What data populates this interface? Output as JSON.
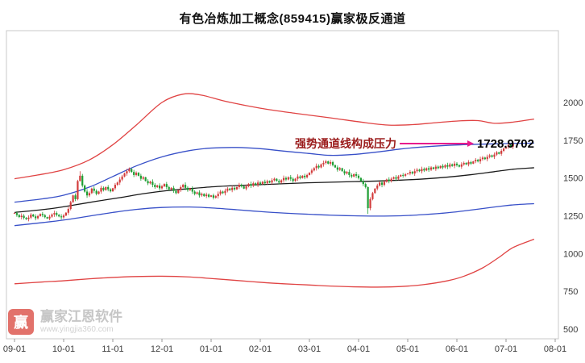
{
  "title": "有色冶炼加工概念(859415)赢家极反通道",
  "annotation": {
    "text": "强势通道线构成压力",
    "value": "1728.9702",
    "text_color": "#9b1c1c",
    "arrow_color": "#e81b8c"
  },
  "watermark": {
    "logo_char": "赢",
    "name": "赢家江恩软件",
    "url": "www.yingjia360.com"
  },
  "chart_data": {
    "type": "candlestick",
    "title": "有色冶炼加工概念(859415)赢家极反通道",
    "x_labels": [
      "09-01",
      "10-01",
      "11-01",
      "12-01",
      "01-01",
      "02-01",
      "03-01",
      "04-01",
      "05-01",
      "06-01",
      "07-01",
      "08-01"
    ],
    "y_ticks": [
      2000,
      1750,
      1500,
      1250,
      1000,
      750,
      500
    ],
    "ylim": [
      500,
      2100
    ],
    "grid": false,
    "legend": "none",
    "days_per_month": 21,
    "up_color": "#d23b3b",
    "down_color": "#1d9e33",
    "last_value": 1728.9702,
    "closes": [
      1268,
      1255,
      1242,
      1250,
      1236,
      1228,
      1238,
      1258,
      1246,
      1234,
      1248,
      1262,
      1254,
      1241,
      1232,
      1244,
      1259,
      1268,
      1256,
      1246,
      1240,
      1252,
      1270,
      1295,
      1340,
      1385,
      1360,
      1480,
      1515,
      1450,
      1410,
      1385,
      1400,
      1430,
      1415,
      1395,
      1410,
      1435,
      1420,
      1440,
      1425,
      1412,
      1432,
      1455,
      1470,
      1490,
      1510,
      1530,
      1545,
      1560,
      1540,
      1520,
      1535,
      1515,
      1495,
      1505,
      1480,
      1465,
      1475,
      1455,
      1440,
      1450,
      1432,
      1445,
      1460,
      1440,
      1425,
      1435,
      1415,
      1400,
      1420,
      1440,
      1455,
      1435,
      1420,
      1430,
      1410,
      1395,
      1405,
      1385,
      1395,
      1380,
      1390,
      1376,
      1385,
      1370,
      1380,
      1395,
      1410,
      1400,
      1415,
      1430,
      1420,
      1435,
      1425,
      1440,
      1455,
      1445,
      1430,
      1445,
      1460,
      1450,
      1465,
      1455,
      1470,
      1460,
      1475,
      1465,
      1480,
      1470,
      1485,
      1495,
      1480,
      1470,
      1485,
      1500,
      1490,
      1505,
      1495,
      1480,
      1495,
      1510,
      1500,
      1515,
      1505,
      1520,
      1535,
      1550,
      1565,
      1580,
      1570,
      1590,
      1600,
      1610,
      1595,
      1605,
      1585,
      1570,
      1555,
      1565,
      1545,
      1530,
      1540,
      1520,
      1510,
      1525,
      1515,
      1500,
      1480,
      1460,
      1440,
      1300,
      1360,
      1400,
      1430,
      1450,
      1470,
      1455,
      1475,
      1490,
      1480,
      1495,
      1505,
      1495,
      1510,
      1520,
      1515,
      1525,
      1530,
      1540,
      1530,
      1545,
      1555,
      1545,
      1560,
      1550,
      1565,
      1555,
      1570,
      1560,
      1575,
      1565,
      1580,
      1570,
      1585,
      1575,
      1590,
      1580,
      1595,
      1585,
      1575,
      1590,
      1600,
      1590,
      1605,
      1595,
      1610,
      1620,
      1610,
      1625,
      1635,
      1625,
      1640,
      1650,
      1640,
      1655,
      1670,
      1660,
      1680,
      1695,
      1705,
      1718,
      1708,
      1728.9702
    ],
    "special_wicks": {
      "28": {
        "high": 1545
      },
      "151": {
        "low": 1262
      }
    },
    "channel_lines": [
      {
        "name": "upper-outer-red",
        "color": "#e04343",
        "points": [
          [
            0,
            1495
          ],
          [
            10,
            1520
          ],
          [
            21,
            1555
          ],
          [
            32,
            1620
          ],
          [
            42,
            1720
          ],
          [
            52,
            1850
          ],
          [
            63,
            2000
          ],
          [
            72,
            2055
          ],
          [
            80,
            2048
          ],
          [
            90,
            2008
          ],
          [
            105,
            1962
          ],
          [
            120,
            1928
          ],
          [
            135,
            1898
          ],
          [
            150,
            1866
          ],
          [
            160,
            1850
          ],
          [
            170,
            1853
          ],
          [
            180,
            1866
          ],
          [
            190,
            1878
          ],
          [
            198,
            1880
          ],
          [
            205,
            1862
          ],
          [
            213,
            1870
          ],
          [
            222,
            1890
          ]
        ]
      },
      {
        "name": "upper-inner-blue",
        "color": "#3850c8",
        "points": [
          [
            0,
            1340
          ],
          [
            12,
            1362
          ],
          [
            21,
            1386
          ],
          [
            32,
            1440
          ],
          [
            42,
            1510
          ],
          [
            52,
            1580
          ],
          [
            63,
            1640
          ],
          [
            75,
            1682
          ],
          [
            84,
            1698
          ],
          [
            95,
            1702
          ],
          [
            105,
            1694
          ],
          [
            115,
            1678
          ],
          [
            126,
            1662
          ],
          [
            135,
            1650
          ],
          [
            145,
            1656
          ],
          [
            155,
            1672
          ],
          [
            165,
            1692
          ],
          [
            175,
            1706
          ],
          [
            185,
            1716
          ],
          [
            195,
            1722
          ],
          [
            205,
            1726
          ],
          [
            213,
            1729
          ],
          [
            222,
            1731
          ]
        ]
      },
      {
        "name": "middle-black",
        "color": "#1a1a1a",
        "points": [
          [
            0,
            1272
          ],
          [
            15,
            1296
          ],
          [
            25,
            1320
          ],
          [
            35,
            1346
          ],
          [
            45,
            1370
          ],
          [
            55,
            1396
          ],
          [
            65,
            1416
          ],
          [
            75,
            1430
          ],
          [
            85,
            1442
          ],
          [
            95,
            1450
          ],
          [
            105,
            1456
          ],
          [
            115,
            1462
          ],
          [
            125,
            1468
          ],
          [
            135,
            1472
          ],
          [
            145,
            1476
          ],
          [
            155,
            1480
          ],
          [
            165,
            1486
          ],
          [
            175,
            1494
          ],
          [
            185,
            1506
          ],
          [
            195,
            1522
          ],
          [
            205,
            1542
          ],
          [
            213,
            1558
          ],
          [
            222,
            1568
          ]
        ]
      },
      {
        "name": "lower-inner-blue",
        "color": "#3850c8",
        "points": [
          [
            0,
            1185
          ],
          [
            12,
            1205
          ],
          [
            21,
            1222
          ],
          [
            32,
            1248
          ],
          [
            42,
            1272
          ],
          [
            52,
            1292
          ],
          [
            63,
            1305
          ],
          [
            75,
            1308
          ],
          [
            84,
            1302
          ],
          [
            95,
            1290
          ],
          [
            105,
            1278
          ],
          [
            115,
            1268
          ],
          [
            126,
            1260
          ],
          [
            135,
            1254
          ],
          [
            145,
            1250
          ],
          [
            155,
            1248
          ],
          [
            165,
            1250
          ],
          [
            175,
            1258
          ],
          [
            185,
            1270
          ],
          [
            195,
            1288
          ],
          [
            205,
            1308
          ],
          [
            213,
            1322
          ],
          [
            222,
            1330
          ]
        ]
      },
      {
        "name": "lower-outer-red",
        "color": "#e04343",
        "points": [
          [
            0,
            800
          ],
          [
            12,
            812
          ],
          [
            21,
            820
          ],
          [
            32,
            833
          ],
          [
            42,
            842
          ],
          [
            52,
            848
          ],
          [
            63,
            850
          ],
          [
            75,
            845
          ],
          [
            84,
            835
          ],
          [
            95,
            822
          ],
          [
            105,
            810
          ],
          [
            115,
            800
          ],
          [
            126,
            792
          ],
          [
            135,
            785
          ],
          [
            145,
            780
          ],
          [
            155,
            778
          ],
          [
            165,
            782
          ],
          [
            175,
            795
          ],
          [
            185,
            820
          ],
          [
            192,
            850
          ],
          [
            200,
            905
          ],
          [
            207,
            975
          ],
          [
            213,
            1040
          ],
          [
            222,
            1095
          ]
        ]
      }
    ]
  }
}
